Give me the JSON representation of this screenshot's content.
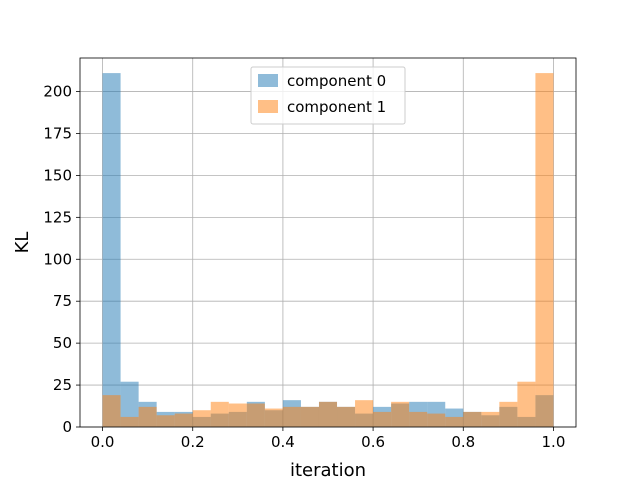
{
  "chart_data": {
    "type": "bar",
    "subtype": "overlaid-histogram",
    "title": "",
    "xlabel": "iteration",
    "ylabel": "KL",
    "xlim": [
      -0.05,
      1.05
    ],
    "ylim": [
      0,
      220
    ],
    "xticks": [
      0.0,
      0.2,
      0.4,
      0.6,
      0.8,
      1.0
    ],
    "xtick_labels": [
      "0.0",
      "0.2",
      "0.4",
      "0.6",
      "0.8",
      "1.0"
    ],
    "yticks": [
      0,
      25,
      50,
      75,
      100,
      125,
      150,
      175,
      200
    ],
    "ytick_labels": [
      "0",
      "25",
      "50",
      "75",
      "100",
      "125",
      "150",
      "175",
      "200"
    ],
    "grid": true,
    "legend_position": "upper-center",
    "bins": 25,
    "bin_range": [
      0,
      1
    ],
    "series": [
      {
        "name": "component 0",
        "color": "#1f77b4",
        "alpha": 0.5,
        "values": [
          211,
          27,
          15,
          9,
          9,
          6,
          8,
          9,
          15,
          10,
          16,
          12,
          15,
          12,
          8,
          12,
          14,
          15,
          15,
          11,
          9,
          7,
          12,
          6,
          19
        ]
      },
      {
        "name": "component 1",
        "color": "#ff7f0e",
        "alpha": 0.5,
        "values": [
          19,
          6,
          12,
          7,
          8,
          10,
          15,
          14,
          14,
          11,
          12,
          12,
          15,
          12,
          16,
          9,
          15,
          9,
          8,
          6,
          9,
          9,
          15,
          27,
          211
        ]
      }
    ]
  }
}
